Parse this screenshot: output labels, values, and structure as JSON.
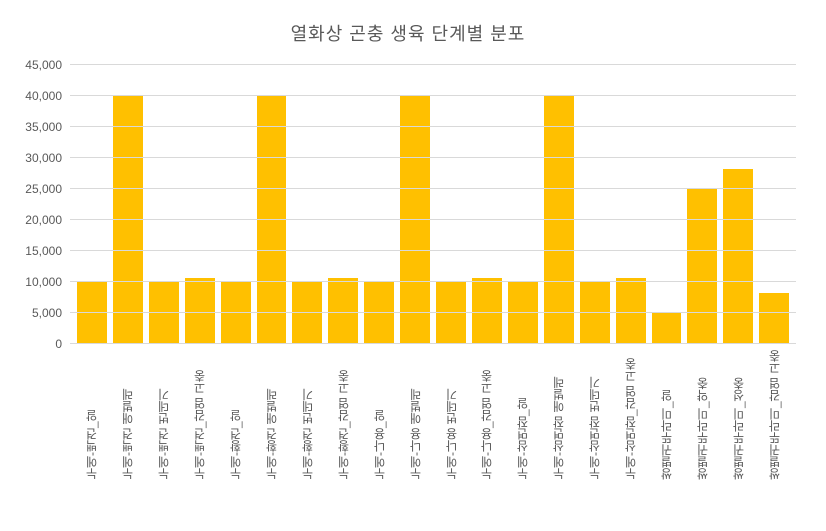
{
  "chart": {
    "type": "bar",
    "title": "열화상 곤충 생육 단계별 분포",
    "title_fontsize": 18,
    "title_color": "#595959",
    "background_color": "#ffffff",
    "grid_color": "#d9d9d9",
    "axis_label_color": "#595959",
    "axis_label_fontsize": 12,
    "bar_color": "#ffc000",
    "bar_width": 0.7,
    "ylim": [
      0,
      45000
    ],
    "ytick_step": 5000,
    "yticks": [
      0,
      5000,
      10000,
      15000,
      20000,
      25000,
      30000,
      35000,
      40000,
      45000
    ],
    "ytick_labels": [
      "0",
      "5,000",
      "10,000",
      "15,000",
      "20,000",
      "25,000",
      "30,000",
      "35,000",
      "40,000",
      "45,000"
    ],
    "categories": [
      "누에-백견_알",
      "누에-백견 애벌레",
      "누에-백견 번데기",
      "누에-백견_감염 고충",
      "누에-황견_알",
      "누에-황견 애벌레",
      "누에-황견 번데기",
      "누에-황견_감염 고충",
      "누에-나용_알",
      "누에-나용 애벌레",
      "누에-나용 번데기",
      "누에-나용_감염 고충",
      "누에-삼면잠_알",
      "누에-삼면잠 애벌레",
      "누에-삼면잠 번데기",
      "누에-삼면잠_감염 고충",
      "쌍별귀뚜라미_알",
      "쌍별귀뚜라미_약충",
      "쌍별귀뚜라미_성충",
      "쌍별귀뚜라미_감염 고충"
    ],
    "values": [
      10000,
      40000,
      10000,
      10500,
      10000,
      40000,
      10000,
      10500,
      10000,
      40000,
      10000,
      10500,
      10000,
      40000,
      10000,
      10500,
      5000,
      25000,
      28000,
      8000
    ]
  }
}
